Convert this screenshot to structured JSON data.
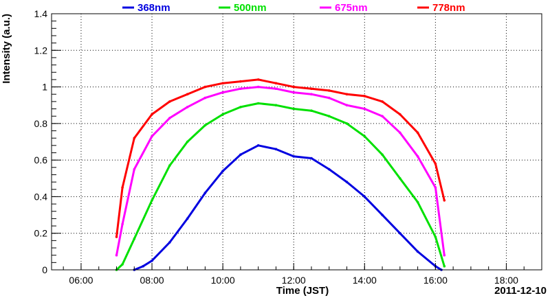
{
  "chart_data": {
    "type": "scatter",
    "xlabel": "Time (JST)",
    "ylabel": "Intensity (a.u.)",
    "date_label": "2011-12-10",
    "xlim": [
      "05:10",
      "19:00"
    ],
    "ylim": [
      0,
      1.4
    ],
    "x_ticks": [
      "06:00",
      "08:00",
      "10:00",
      "12:00",
      "14:00",
      "16:00",
      "18:00"
    ],
    "y_ticks": [
      "0",
      "0.2",
      "0.4",
      "0.6",
      "0.8",
      "1",
      "1.2",
      "1.4"
    ],
    "grid": true,
    "legend_position": "top",
    "series": [
      {
        "name": "368nm",
        "color": "#0000e0",
        "points": [
          [
            "07:30",
            0.0
          ],
          [
            "07:45",
            0.02
          ],
          [
            "08:00",
            0.05
          ],
          [
            "08:30",
            0.15
          ],
          [
            "09:00",
            0.28
          ],
          [
            "09:30",
            0.42
          ],
          [
            "10:00",
            0.54
          ],
          [
            "10:30",
            0.63
          ],
          [
            "11:00",
            0.68
          ],
          [
            "11:30",
            0.66
          ],
          [
            "12:00",
            0.62
          ],
          [
            "12:30",
            0.61
          ],
          [
            "13:00",
            0.55
          ],
          [
            "13:30",
            0.48
          ],
          [
            "14:00",
            0.4
          ],
          [
            "14:30",
            0.3
          ],
          [
            "15:00",
            0.2
          ],
          [
            "15:30",
            0.1
          ],
          [
            "16:00",
            0.02
          ],
          [
            "16:10",
            0.0
          ]
        ]
      },
      {
        "name": "500nm",
        "color": "#00e000",
        "points": [
          [
            "07:00",
            0.0
          ],
          [
            "07:10",
            0.03
          ],
          [
            "07:30",
            0.17
          ],
          [
            "08:00",
            0.38
          ],
          [
            "08:30",
            0.57
          ],
          [
            "09:00",
            0.7
          ],
          [
            "09:30",
            0.79
          ],
          [
            "10:00",
            0.85
          ],
          [
            "10:30",
            0.89
          ],
          [
            "11:00",
            0.91
          ],
          [
            "11:30",
            0.9
          ],
          [
            "12:00",
            0.88
          ],
          [
            "12:30",
            0.87
          ],
          [
            "13:00",
            0.84
          ],
          [
            "13:30",
            0.8
          ],
          [
            "14:00",
            0.73
          ],
          [
            "14:30",
            0.63
          ],
          [
            "15:00",
            0.5
          ],
          [
            "15:30",
            0.37
          ],
          [
            "16:00",
            0.18
          ],
          [
            "16:15",
            0.02
          ]
        ]
      },
      {
        "name": "675nm",
        "color": "#ff00ff",
        "points": [
          [
            "07:00",
            0.08
          ],
          [
            "07:10",
            0.25
          ],
          [
            "07:30",
            0.55
          ],
          [
            "08:00",
            0.73
          ],
          [
            "08:30",
            0.83
          ],
          [
            "09:00",
            0.89
          ],
          [
            "09:30",
            0.94
          ],
          [
            "10:00",
            0.97
          ],
          [
            "10:30",
            0.99
          ],
          [
            "11:00",
            1.0
          ],
          [
            "11:30",
            0.99
          ],
          [
            "12:00",
            0.97
          ],
          [
            "12:30",
            0.96
          ],
          [
            "13:00",
            0.94
          ],
          [
            "13:30",
            0.9
          ],
          [
            "14:00",
            0.88
          ],
          [
            "14:30",
            0.84
          ],
          [
            "15:00",
            0.75
          ],
          [
            "15:30",
            0.62
          ],
          [
            "16:00",
            0.45
          ],
          [
            "16:15",
            0.08
          ]
        ]
      },
      {
        "name": "778nm",
        "color": "#ff0000",
        "points": [
          [
            "07:00",
            0.18
          ],
          [
            "07:10",
            0.45
          ],
          [
            "07:30",
            0.72
          ],
          [
            "08:00",
            0.85
          ],
          [
            "08:30",
            0.92
          ],
          [
            "09:00",
            0.96
          ],
          [
            "09:30",
            1.0
          ],
          [
            "10:00",
            1.02
          ],
          [
            "10:30",
            1.03
          ],
          [
            "11:00",
            1.04
          ],
          [
            "11:30",
            1.02
          ],
          [
            "12:00",
            1.0
          ],
          [
            "12:30",
            0.99
          ],
          [
            "13:00",
            0.98
          ],
          [
            "13:30",
            0.96
          ],
          [
            "14:00",
            0.95
          ],
          [
            "14:30",
            0.92
          ],
          [
            "15:00",
            0.85
          ],
          [
            "15:30",
            0.75
          ],
          [
            "16:00",
            0.58
          ],
          [
            "16:15",
            0.38
          ]
        ]
      }
    ]
  }
}
